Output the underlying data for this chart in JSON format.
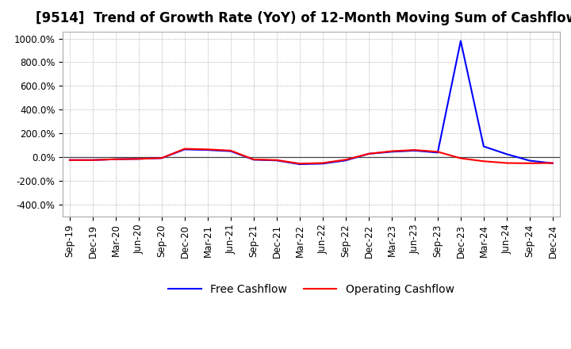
{
  "title": "[9514]  Trend of Growth Rate (YoY) of 12-Month Moving Sum of Cashflows",
  "ylim": [
    -500,
    1060
  ],
  "yticks": [
    -400,
    -200,
    0,
    200,
    400,
    600,
    800,
    1000
  ],
  "ytick_labels": [
    "-400.0%",
    "-200.0%",
    "0.0%",
    "200.0%",
    "400.0%",
    "600.0%",
    "800.0%",
    "1000.0%"
  ],
  "x_labels": [
    "Sep-19",
    "Dec-19",
    "Mar-20",
    "Jun-20",
    "Sep-20",
    "Dec-20",
    "Mar-21",
    "Jun-21",
    "Sep-21",
    "Dec-21",
    "Mar-22",
    "Jun-22",
    "Sep-22",
    "Dec-22",
    "Mar-23",
    "Jun-23",
    "Sep-23",
    "Dec-23",
    "Mar-24",
    "Jun-24",
    "Sep-24",
    "Dec-24"
  ],
  "operating_cashflow": [
    -25,
    -25,
    -18,
    -15,
    -8,
    70,
    65,
    55,
    -20,
    -25,
    -55,
    -50,
    -22,
    28,
    50,
    60,
    45,
    -10,
    -35,
    -50,
    -52,
    -50
  ],
  "free_cashflow": [
    -25,
    -25,
    -18,
    -15,
    -8,
    65,
    60,
    50,
    -22,
    -28,
    -60,
    -55,
    -28,
    28,
    45,
    55,
    38,
    980,
    90,
    25,
    -30,
    -52
  ],
  "operating_color": "#ff0000",
  "free_color": "#0000ff",
  "background_color": "#ffffff",
  "grid_color": "#999999",
  "title_fontsize": 12,
  "legend_fontsize": 10,
  "tick_fontsize": 8.5
}
